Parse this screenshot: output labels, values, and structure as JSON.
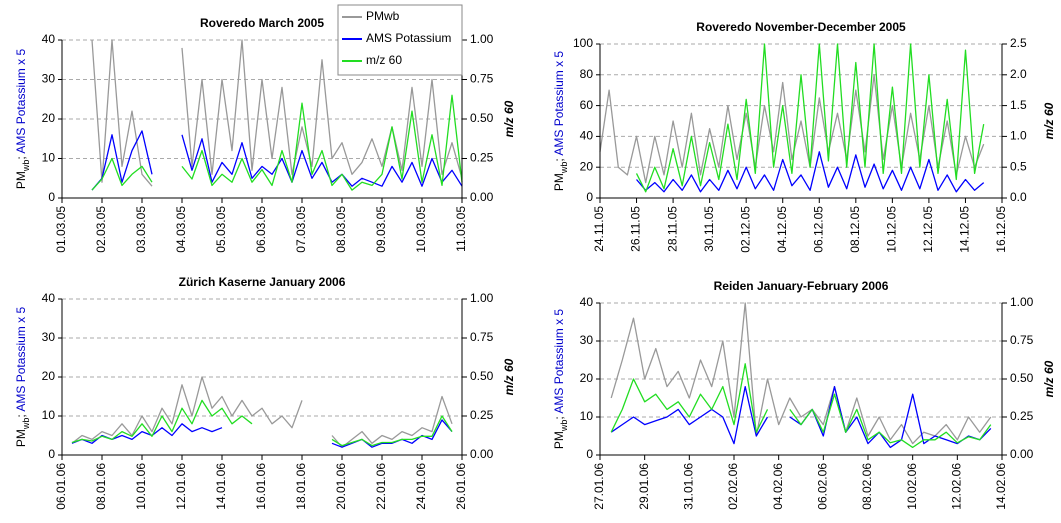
{
  "chart_data": [
    {
      "type": "line",
      "title": "Roveredo March 2005",
      "ylabel": {
        "main": "PM",
        "sub": "wb",
        "sep": "; ",
        "colored": "AMS Potassium x 5"
      },
      "y2label": "m/z 60",
      "legend": "top-right",
      "x": [
        0,
        0.25,
        0.5,
        0.75,
        1,
        1.25,
        1.5,
        1.75,
        2,
        2.25,
        2.5,
        2.75,
        3,
        3.25,
        3.5,
        3.75,
        4,
        4.25,
        4.5,
        4.75,
        5,
        5.25,
        5.5,
        5.75,
        6,
        6.25,
        6.5,
        6.75,
        7,
        7.25,
        7.5,
        7.75,
        8,
        8.25,
        8.5,
        8.75,
        9,
        9.25,
        9.5,
        9.75,
        10
      ],
      "xlim": [
        0,
        10
      ],
      "xticks": [
        {
          "value": 0,
          "label": "01.03.05"
        },
        {
          "value": 1,
          "label": "02.03.05"
        },
        {
          "value": 2,
          "label": "03.03.05"
        },
        {
          "value": 3,
          "label": "04.03.05"
        },
        {
          "value": 4,
          "label": "05.03.05"
        },
        {
          "value": 5,
          "label": "06.03.05"
        },
        {
          "value": 6,
          "label": "07.03.05"
        },
        {
          "value": 7,
          "label": "08.03.05"
        },
        {
          "value": 8,
          "label": "09.03.05"
        },
        {
          "value": 9,
          "label": "10.03.05"
        },
        {
          "value": 10,
          "label": "11.03.05"
        }
      ],
      "ylim": [
        0,
        40
      ],
      "yticks": [
        0,
        10,
        20,
        30,
        40
      ],
      "y2lim": [
        0,
        1
      ],
      "y2ticks": [
        {
          "value": 0,
          "label": "0.00"
        },
        {
          "value": 0.25,
          "label": "0.25"
        },
        {
          "value": 0.5,
          "label": "0.50"
        },
        {
          "value": 0.75,
          "label": "0.75"
        },
        {
          "value": 1,
          "label": "1.00"
        }
      ],
      "grid": true,
      "series": [
        {
          "name": "PMwb",
          "color": "#999999",
          "values": [
            null,
            null,
            null,
            40,
            4,
            40,
            8,
            22,
            6,
            3,
            null,
            null,
            38,
            8,
            30,
            6,
            30,
            12,
            40,
            7,
            30,
            10,
            28,
            6,
            18,
            8,
            35,
            10,
            14,
            6,
            9,
            15,
            8,
            18,
            7,
            28,
            8,
            30,
            6,
            14,
            5
          ]
        },
        {
          "name": "AMS Potassium",
          "color": "#0000ff",
          "values": [
            null,
            null,
            null,
            2,
            5,
            16,
            4,
            12,
            17,
            6,
            null,
            null,
            16,
            7,
            15,
            4,
            9,
            6,
            14,
            5,
            8,
            6,
            10,
            4,
            12,
            5,
            9,
            4,
            6,
            3,
            5,
            4,
            3,
            8,
            4,
            9,
            3,
            10,
            4,
            7,
            3
          ]
        },
        {
          "name": "m/z 60",
          "color": "#22dd22",
          "axis": "y2",
          "values": [
            null,
            null,
            null,
            0.05,
            0.12,
            0.25,
            0.08,
            0.15,
            0.2,
            0.1,
            null,
            null,
            0.2,
            0.12,
            0.3,
            0.08,
            0.15,
            0.1,
            0.25,
            0.1,
            0.18,
            0.08,
            0.3,
            0.1,
            0.6,
            0.15,
            0.3,
            0.08,
            0.15,
            0.05,
            0.1,
            0.08,
            0.15,
            0.45,
            0.12,
            0.55,
            0.1,
            0.4,
            0.08,
            0.65,
            0.1
          ]
        }
      ]
    },
    {
      "type": "line",
      "title": "Roveredo November-December 2005",
      "ylabel": {
        "main": "PM",
        "sub": "wb",
        "sep": "; ",
        "colored": "AMS Potassium x 5"
      },
      "y2label": "m/z 60",
      "x": [
        0,
        0.5,
        1,
        1.5,
        2,
        2.5,
        3,
        3.5,
        4,
        4.5,
        5,
        5.5,
        6,
        6.5,
        7,
        7.5,
        8,
        8.5,
        9,
        9.5,
        10,
        10.5,
        11,
        11.5,
        12,
        12.5,
        13,
        13.5,
        14,
        14.5,
        15,
        15.5,
        16,
        16.5,
        17,
        17.5,
        18,
        18.5,
        19,
        19.5,
        20,
        20.5,
        21,
        21.5,
        22
      ],
      "xlim": [
        0,
        22
      ],
      "xticks": [
        {
          "value": 0,
          "label": "24.11.05"
        },
        {
          "value": 2,
          "label": "26.11.05"
        },
        {
          "value": 4,
          "label": "28.11.05"
        },
        {
          "value": 6,
          "label": "30.11.05"
        },
        {
          "value": 8,
          "label": "02.12.05"
        },
        {
          "value": 10,
          "label": "04.12.05"
        },
        {
          "value": 12,
          "label": "06.12.05"
        },
        {
          "value": 14,
          "label": "08.12.05"
        },
        {
          "value": 16,
          "label": "10.12.05"
        },
        {
          "value": 18,
          "label": "12.12.05"
        },
        {
          "value": 20,
          "label": "14.12.05"
        },
        {
          "value": 22,
          "label": "16.12.05"
        }
      ],
      "ylim": [
        0,
        100
      ],
      "yticks": [
        0,
        20,
        40,
        60,
        80,
        100
      ],
      "y2lim": [
        0,
        2.5
      ],
      "y2ticks": [
        {
          "value": 0,
          "label": "0.0"
        },
        0.5,
        {
          "value": 1,
          "label": "1.0"
        },
        1.5,
        {
          "value": 2,
          "label": "2.0"
        },
        2.5
      ],
      "grid": true,
      "series": [
        {
          "name": "PMwb",
          "color": "#999999",
          "values": [
            30,
            70,
            20,
            15,
            40,
            10,
            40,
            15,
            50,
            20,
            55,
            15,
            45,
            20,
            60,
            25,
            55,
            20,
            60,
            30,
            75,
            25,
            50,
            20,
            65,
            30,
            55,
            25,
            70,
            30,
            80,
            25,
            60,
            20,
            55,
            25,
            60,
            20,
            50,
            15,
            40,
            20,
            35,
            null,
            null
          ]
        },
        {
          "name": "AMS Potassium",
          "color": "#0000ff",
          "values": [
            null,
            null,
            null,
            null,
            12,
            5,
            10,
            4,
            12,
            5,
            15,
            4,
            12,
            5,
            18,
            6,
            20,
            6,
            15,
            5,
            25,
            8,
            15,
            5,
            30,
            7,
            20,
            6,
            28,
            7,
            22,
            6,
            18,
            5,
            20,
            6,
            25,
            5,
            15,
            4,
            12,
            5,
            10,
            null,
            null
          ]
        },
        {
          "name": "m/z 60",
          "color": "#22dd22",
          "axis": "y2",
          "values": [
            null,
            null,
            null,
            null,
            0.4,
            0.1,
            0.5,
            0.15,
            0.8,
            0.2,
            1.0,
            0.2,
            0.9,
            0.3,
            1.2,
            0.3,
            1.6,
            0.4,
            2.5,
            0.5,
            1.5,
            0.4,
            2.0,
            0.5,
            2.5,
            0.6,
            2.5,
            0.5,
            2.2,
            0.5,
            2.5,
            0.4,
            1.8,
            0.4,
            2.5,
            0.5,
            2.0,
            0.4,
            1.6,
            0.3,
            2.4,
            0.4,
            1.2,
            null,
            null
          ]
        }
      ]
    },
    {
      "type": "line",
      "title": "Zürich  Kaserne January 2006",
      "ylabel": {
        "main": "PM",
        "sub": "wb",
        "sep": "; ",
        "colored": "AMS Potassium x 5"
      },
      "y2label": "m/z 60",
      "x": [
        0,
        0.5,
        1,
        1.5,
        2,
        2.5,
        3,
        3.5,
        4,
        4.5,
        5,
        5.5,
        6,
        6.5,
        7,
        7.5,
        8,
        8.5,
        9,
        9.5,
        10,
        10.5,
        11,
        11.5,
        12,
        12.5,
        13,
        13.5,
        14,
        14.5,
        15,
        15.5,
        16,
        16.5,
        17,
        17.5,
        18,
        18.5,
        19,
        19.5,
        20
      ],
      "xlim": [
        0,
        20
      ],
      "xticks": [
        {
          "value": 0,
          "label": "06.01.06"
        },
        {
          "value": 2,
          "label": "08.01.06"
        },
        {
          "value": 4,
          "label": "10.01.06"
        },
        {
          "value": 6,
          "label": "12.01.06"
        },
        {
          "value": 8,
          "label": "14.01.06"
        },
        {
          "value": 10,
          "label": "16.01.06"
        },
        {
          "value": 12,
          "label": "18.01.06"
        },
        {
          "value": 14,
          "label": "20.01.06"
        },
        {
          "value": 16,
          "label": "22.01.06"
        },
        {
          "value": 18,
          "label": "24.01.06"
        },
        {
          "value": 20,
          "label": "26.01.06"
        }
      ],
      "ylim": [
        0,
        40
      ],
      "yticks": [
        0,
        10,
        20,
        30,
        40
      ],
      "y2lim": [
        0,
        1
      ],
      "y2ticks": [
        {
          "value": 0,
          "label": "0.00"
        },
        {
          "value": 0.25,
          "label": "0.25"
        },
        {
          "value": 0.5,
          "label": "0.50"
        },
        {
          "value": 0.75,
          "label": "0.75"
        },
        {
          "value": 1,
          "label": "1.00"
        }
      ],
      "grid": true,
      "series": [
        {
          "name": "PMwb",
          "color": "#999999",
          "values": [
            null,
            3,
            5,
            4,
            6,
            5,
            8,
            5,
            10,
            6,
            12,
            8,
            18,
            10,
            20,
            12,
            15,
            10,
            14,
            10,
            12,
            8,
            10,
            7,
            14,
            null,
            null,
            5,
            2,
            4,
            6,
            3,
            5,
            4,
            6,
            5,
            7,
            6,
            15,
            8,
            null
          ]
        },
        {
          "name": "AMS Potassium",
          "color": "#0000ff",
          "values": [
            null,
            3,
            4,
            3,
            5,
            4,
            5,
            4,
            6,
            5,
            7,
            5,
            8,
            6,
            7,
            6,
            7,
            null,
            null,
            null,
            null,
            null,
            null,
            null,
            null,
            null,
            null,
            3,
            2,
            3,
            4,
            2,
            3,
            3,
            4,
            3,
            5,
            4,
            9,
            6,
            null
          ]
        },
        {
          "name": "m/z 60",
          "color": "#22dd22",
          "axis": "y2",
          "values": [
            null,
            0.08,
            0.1,
            0.09,
            0.12,
            0.1,
            0.15,
            0.12,
            0.2,
            0.12,
            0.25,
            0.15,
            0.3,
            0.2,
            0.35,
            0.25,
            0.3,
            0.2,
            0.25,
            0.2,
            null,
            null,
            null,
            0.2,
            null,
            null,
            null,
            0.1,
            0.06,
            0.08,
            0.1,
            0.06,
            0.08,
            0.08,
            0.1,
            0.1,
            0.12,
            0.12,
            0.25,
            0.15,
            null
          ]
        }
      ]
    },
    {
      "type": "line",
      "title": "Reiden January-February 2006",
      "ylabel": {
        "main": "PM",
        "sub": "wb",
        "sep": "; ",
        "colored": "AMS Potassium x 5"
      },
      "y2label": "m/z 60",
      "x": [
        0,
        0.5,
        1,
        1.5,
        2,
        2.5,
        3,
        3.5,
        4,
        4.5,
        5,
        5.5,
        6,
        6.5,
        7,
        7.5,
        8,
        8.5,
        9,
        9.5,
        10,
        10.5,
        11,
        11.5,
        12,
        12.5,
        13,
        13.5,
        14,
        14.5,
        15,
        15.5,
        16,
        16.5,
        17,
        17.5,
        18
      ],
      "xlim": [
        0,
        18
      ],
      "xticks": [
        {
          "value": 0,
          "label": "27.01.06"
        },
        {
          "value": 2,
          "label": "29.01.06"
        },
        {
          "value": 4,
          "label": "31.01.06"
        },
        {
          "value": 6,
          "label": "02.02.06"
        },
        {
          "value": 8,
          "label": "04.02.06"
        },
        {
          "value": 10,
          "label": "06.02.06"
        },
        {
          "value": 12,
          "label": "08.02.06"
        },
        {
          "value": 14,
          "label": "10.02.06"
        },
        {
          "value": 16,
          "label": "12.02.06"
        },
        {
          "value": 18,
          "label": "14.02.06"
        }
      ],
      "ylim": [
        0,
        40
      ],
      "yticks": [
        0,
        10,
        20,
        30,
        40
      ],
      "y2lim": [
        0,
        1
      ],
      "y2ticks": [
        {
          "value": 0,
          "label": "0.00"
        },
        {
          "value": 0.25,
          "label": "0.25"
        },
        {
          "value": 0.5,
          "label": "0.50"
        },
        {
          "value": 0.75,
          "label": "0.75"
        },
        {
          "value": 1,
          "label": "1.00"
        }
      ],
      "grid": true,
      "series": [
        {
          "name": "PMwb",
          "color": "#999999",
          "values": [
            null,
            15,
            25,
            36,
            20,
            28,
            18,
            22,
            15,
            25,
            18,
            30,
            10,
            40,
            5,
            20,
            8,
            15,
            10,
            12,
            8,
            18,
            6,
            15,
            5,
            10,
            4,
            8,
            3,
            6,
            5,
            8,
            4,
            10,
            6,
            10,
            null
          ]
        },
        {
          "name": "AMS Potassium",
          "color": "#0000ff",
          "values": [
            null,
            6,
            8,
            10,
            8,
            9,
            10,
            12,
            8,
            10,
            12,
            10,
            3,
            18,
            5,
            10,
            null,
            10,
            8,
            12,
            5,
            18,
            6,
            10,
            3,
            6,
            2,
            4,
            16,
            3,
            5,
            4,
            3,
            5,
            4,
            7,
            null
          ]
        },
        {
          "name": "m/z 60",
          "color": "#22dd22",
          "axis": "y2",
          "values": [
            null,
            0.15,
            0.3,
            0.5,
            0.35,
            0.4,
            0.3,
            0.35,
            0.25,
            0.4,
            0.3,
            0.45,
            0.2,
            0.6,
            0.15,
            0.3,
            null,
            0.3,
            0.2,
            0.3,
            0.15,
            0.4,
            0.15,
            0.3,
            0.1,
            0.15,
            0.08,
            0.1,
            0.05,
            0.1,
            0.1,
            0.15,
            0.08,
            0.12,
            0.1,
            0.2,
            null
          ]
        }
      ]
    }
  ]
}
